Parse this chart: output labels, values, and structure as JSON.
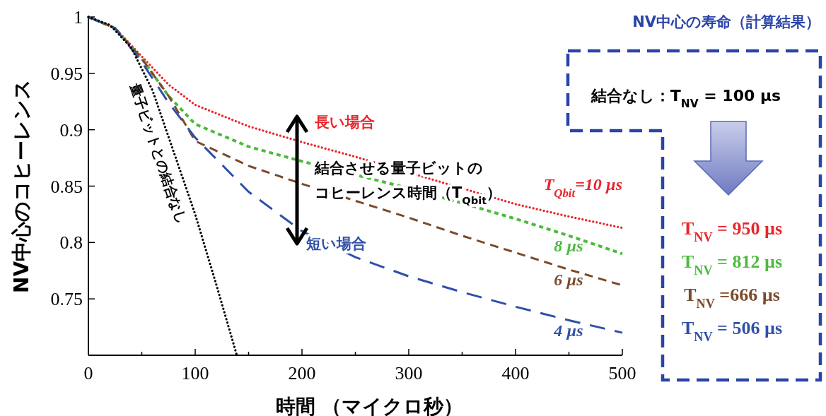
{
  "chart_data": [
    {
      "type": "line",
      "xlabel": "時間 （マイクロ秒）",
      "ylabel": "NV中心のコヒーレンス",
      "xlim": [
        0,
        500
      ],
      "ylim": [
        0.7,
        1
      ],
      "xticks": [
        0,
        {
          "value": 50,
          "label": null
        },
        100,
        {
          "value": 150,
          "label": null
        },
        200,
        {
          "value": 250,
          "label": null
        },
        300,
        {
          "value": 350,
          "label": null
        },
        400,
        {
          "value": 450,
          "label": null
        },
        500
      ],
      "yticks": [
        {
          "value": 0.7,
          "label": null
        },
        0.75,
        0.8,
        0.85,
        0.9,
        0.95,
        1
      ],
      "grid": false,
      "marker": "none",
      "series": [
        {
          "name": "T$_{Qbit}$=10 µs",
          "color": "#e8252a",
          "line_style": "dotted",
          "x": [
            0,
            25,
            50,
            75,
            100,
            150,
            200,
            250,
            300,
            350,
            400,
            450,
            500
          ],
          "values": [
            1,
            0.99,
            0.965,
            0.94,
            0.922,
            0.903,
            0.889,
            0.876,
            0.862,
            0.848,
            0.834,
            0.823,
            0.813
          ]
        },
        {
          "name": "8 µs",
          "color": "#4cbb3f",
          "line_style": "dashed",
          "x": [
            0,
            25,
            50,
            75,
            100,
            150,
            200,
            250,
            300,
            350,
            400,
            450,
            500
          ],
          "values": [
            1,
            0.99,
            0.963,
            0.93,
            0.905,
            0.885,
            0.872,
            0.86,
            0.848,
            0.835,
            0.821,
            0.806,
            0.79
          ]
        },
        {
          "name": "6 µs",
          "color": "#7b4a2a",
          "line_style": "dashed",
          "x": [
            0,
            25,
            50,
            75,
            100,
            150,
            200,
            250,
            300,
            350,
            400,
            450,
            500
          ],
          "values": [
            1,
            0.99,
            0.963,
            0.93,
            0.89,
            0.868,
            0.852,
            0.837,
            0.822,
            0.806,
            0.791,
            0.776,
            0.762
          ]
        },
        {
          "name": "4 µs",
          "color": "#2f4fa8",
          "line_style": "dashed",
          "x": [
            0,
            25,
            50,
            75,
            100,
            150,
            200,
            250,
            300,
            350,
            400,
            450,
            500
          ],
          "values": [
            1,
            0.99,
            0.96,
            0.924,
            0.893,
            0.845,
            0.81,
            0.787,
            0.77,
            0.756,
            0.743,
            0.731,
            0.72
          ]
        },
        {
          "name": "量子ビットとの結合なし",
          "color": "#000000",
          "line_style": "dotted",
          "x": [
            0,
            20,
            40,
            60,
            80,
            100,
            120,
            139
          ],
          "values": [
            1,
            0.993,
            0.973,
            0.935,
            0.88,
            0.825,
            0.762,
            0.7
          ]
        }
      ],
      "annotations": [
        "長い場合",
        "短い場合",
        "結合させる量子ビットの",
        "コヒーレンス時間（T$_{Qbit}$）"
      ]
    },
    {
      "type": "other",
      "title": "NV中心の寿命（計算結果）",
      "annotations": [
        "結合なし：T$_{NV}$ = 100 µs",
        "T$_{NV}$ = 950 µs",
        "T$_{NV}$ = 812 µs",
        "T$_{NV}$ =666 µs",
        "T$_{NV}$ = 506 µs"
      ]
    }
  ]
}
